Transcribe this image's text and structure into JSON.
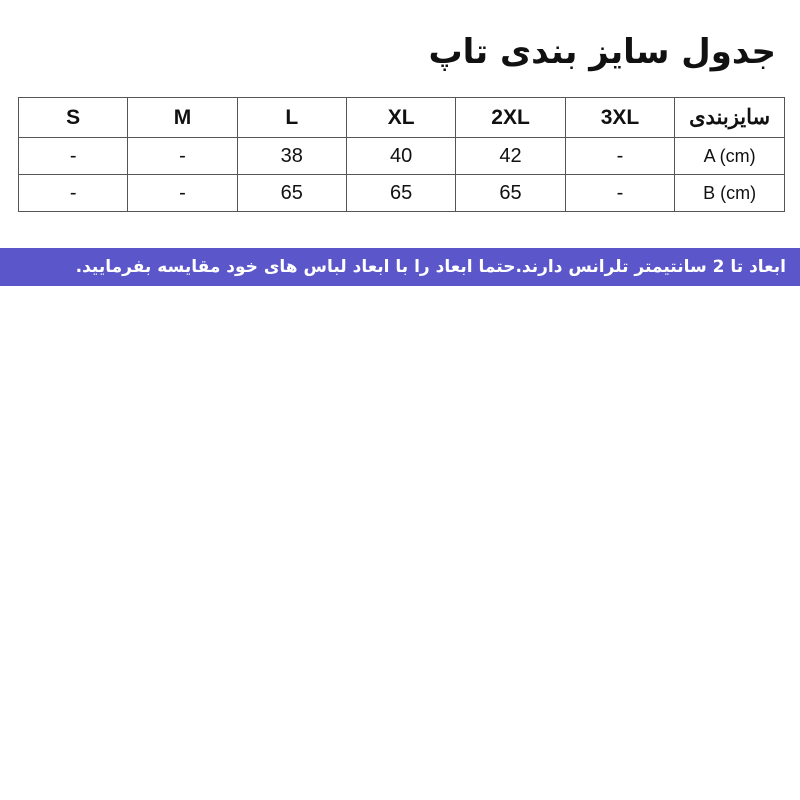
{
  "title": "جدول سایز بندی تاپ",
  "table": {
    "header": [
      "سایزبندی",
      "3XL",
      "2XL",
      "XL",
      "L",
      "M",
      "S"
    ],
    "rows": [
      [
        "A (cm)",
        "-",
        "42",
        "40",
        "38",
        "-",
        "-"
      ],
      [
        "B (cm)",
        "-",
        "65",
        "65",
        "65",
        "-",
        "-"
      ]
    ]
  },
  "note": "ابعاد تا 2 سانتیمتر تلرانس دارند.حتما ابعاد را با ابعاد لباس های خود مقایسه بفرمایید.",
  "colors": {
    "banner": "#5b56c9"
  }
}
